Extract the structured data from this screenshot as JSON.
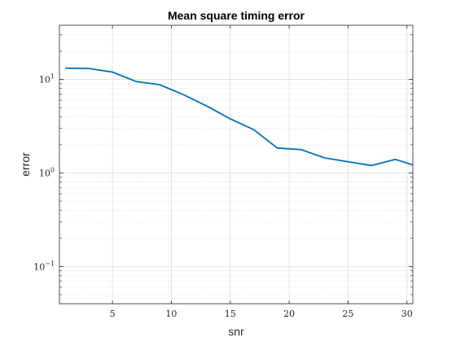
{
  "chart_data": {
    "type": "line",
    "title": "Mean square timing error",
    "xlabel": "snr",
    "ylabel": "error",
    "xlim": [
      0.5,
      30.5
    ],
    "ylim": [
      0.04,
      38
    ],
    "yscale": "log",
    "grid": true,
    "minor_grid": true,
    "x_ticks": [
      5,
      10,
      15,
      20,
      25,
      30
    ],
    "y_ticks": [
      {
        "value": 0.1,
        "base": "10",
        "exp": "−1"
      },
      {
        "value": 1,
        "base": "10",
        "exp": "0"
      },
      {
        "value": 10,
        "base": "10",
        "exp": "1"
      }
    ],
    "series": [
      {
        "color": "#0072BD",
        "x": [
          1,
          3,
          5,
          7,
          9,
          11,
          13,
          15,
          17,
          19,
          21,
          23,
          25,
          27,
          29,
          30.5
        ],
        "y": [
          13.2,
          13.1,
          12.0,
          9.5,
          8.8,
          6.9,
          5.2,
          3.8,
          2.9,
          1.85,
          1.78,
          1.45,
          1.32,
          1.2,
          1.4,
          1.22
        ]
      }
    ]
  }
}
